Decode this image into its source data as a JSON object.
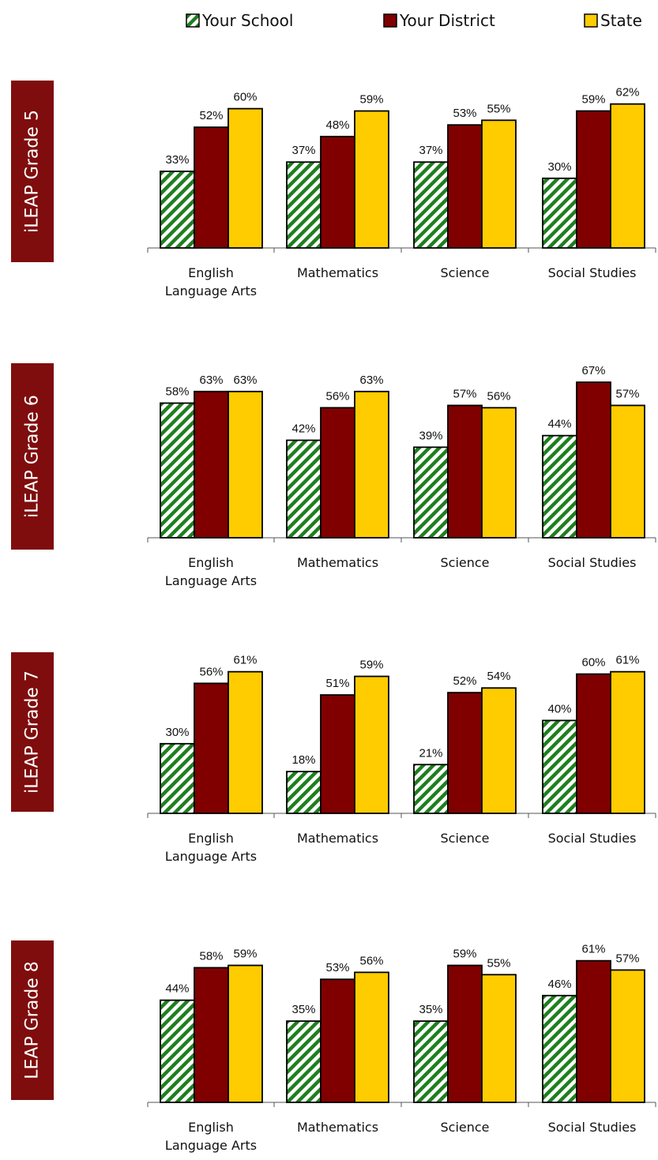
{
  "legend": {
    "items": [
      {
        "label": "Your School",
        "color": "#1e7f1e",
        "pattern": "hatch"
      },
      {
        "label": "Your District",
        "color": "#800000"
      },
      {
        "label": "State",
        "color": "#ffcc00"
      }
    ]
  },
  "chart_data": [
    {
      "type": "bar",
      "side_label": "iLEAP Grade 5",
      "categories": [
        [
          "English",
          "Language Arts"
        ],
        [
          "Mathematics"
        ],
        [
          "Science"
        ],
        [
          "Social Studies"
        ]
      ],
      "series": [
        {
          "name": "Your School",
          "values": [
            33,
            37,
            37,
            30
          ]
        },
        {
          "name": "Your District",
          "values": [
            52,
            48,
            53,
            59
          ]
        },
        {
          "name": "State",
          "values": [
            60,
            59,
            55,
            62
          ]
        }
      ],
      "value_suffix": "%",
      "ylim": [
        0,
        70
      ]
    },
    {
      "type": "bar",
      "side_label": "iLEAP Grade 6",
      "categories": [
        [
          "English",
          "Language Arts"
        ],
        [
          "Mathematics"
        ],
        [
          "Science"
        ],
        [
          "Social Studies"
        ]
      ],
      "series": [
        {
          "name": "Your School",
          "values": [
            58,
            42,
            39,
            44
          ]
        },
        {
          "name": "Your District",
          "values": [
            63,
            56,
            57,
            67
          ]
        },
        {
          "name": "State",
          "values": [
            63,
            63,
            56,
            57
          ]
        }
      ],
      "value_suffix": "%",
      "ylim": [
        0,
        70
      ]
    },
    {
      "type": "bar",
      "side_label": "iLEAP Grade 7",
      "categories": [
        [
          "English",
          "Language Arts"
        ],
        [
          "Mathematics"
        ],
        [
          "Science"
        ],
        [
          "Social Studies"
        ]
      ],
      "series": [
        {
          "name": "Your School",
          "values": [
            30,
            18,
            21,
            40
          ]
        },
        {
          "name": "Your District",
          "values": [
            56,
            51,
            52,
            60
          ]
        },
        {
          "name": "State",
          "values": [
            61,
            59,
            54,
            61
          ]
        }
      ],
      "value_suffix": "%",
      "ylim": [
        0,
        70
      ]
    },
    {
      "type": "bar",
      "side_label": "LEAP Grade 8",
      "categories": [
        [
          "English",
          "Language Arts"
        ],
        [
          "Mathematics"
        ],
        [
          "Science"
        ],
        [
          "Social Studies"
        ]
      ],
      "series": [
        {
          "name": "Your School",
          "values": [
            44,
            35,
            35,
            46
          ]
        },
        {
          "name": "Your District",
          "values": [
            58,
            53,
            59,
            61
          ]
        },
        {
          "name": "State",
          "values": [
            59,
            56,
            55,
            57
          ]
        }
      ],
      "value_suffix": "%",
      "ylim": [
        0,
        70
      ]
    }
  ]
}
